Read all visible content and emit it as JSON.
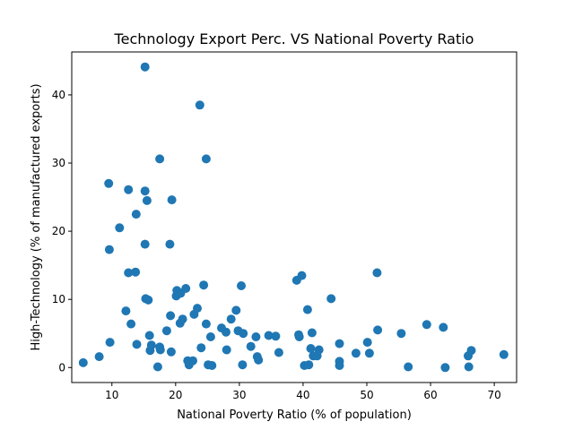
{
  "chart_data": {
    "type": "scatter",
    "title": "Technology Export Perc. VS National Poverty Ratio",
    "xlabel": "National Poverty Ratio (% of population)",
    "ylabel": "High-Technology (% of manufactured exports)",
    "xlim": [
      3.7,
      73.5
    ],
    "ylim": [
      -2.2,
      46.3
    ],
    "xticks": [
      10,
      20,
      30,
      40,
      50,
      60,
      70
    ],
    "yticks": [
      0,
      10,
      20,
      30,
      40
    ],
    "grid": false,
    "marker_color": "#1f77b4",
    "points": [
      [
        5.5,
        0.7
      ],
      [
        8.0,
        1.6
      ],
      [
        9.5,
        27.0
      ],
      [
        9.6,
        17.3
      ],
      [
        9.7,
        3.7
      ],
      [
        11.2,
        20.5
      ],
      [
        12.2,
        8.3
      ],
      [
        12.6,
        26.1
      ],
      [
        12.6,
        13.9
      ],
      [
        13.0,
        6.4
      ],
      [
        13.7,
        14.0
      ],
      [
        13.8,
        22.5
      ],
      [
        13.9,
        3.4
      ],
      [
        15.2,
        44.1
      ],
      [
        15.2,
        25.9
      ],
      [
        15.2,
        18.1
      ],
      [
        15.3,
        10.1
      ],
      [
        15.5,
        24.5
      ],
      [
        15.7,
        9.9
      ],
      [
        15.9,
        4.7
      ],
      [
        16.0,
        2.5
      ],
      [
        16.2,
        3.3
      ],
      [
        17.2,
        0.1
      ],
      [
        17.5,
        30.6
      ],
      [
        17.5,
        3.0
      ],
      [
        17.6,
        2.6
      ],
      [
        18.6,
        5.4
      ],
      [
        19.1,
        18.1
      ],
      [
        19.2,
        7.6
      ],
      [
        19.3,
        2.3
      ],
      [
        19.4,
        24.6
      ],
      [
        20.1,
        10.5
      ],
      [
        20.2,
        11.3
      ],
      [
        20.7,
        6.5
      ],
      [
        20.8,
        10.9
      ],
      [
        21.1,
        7.1
      ],
      [
        21.6,
        11.6
      ],
      [
        21.9,
        1.0
      ],
      [
        22.1,
        0.4
      ],
      [
        22.7,
        1.0
      ],
      [
        22.9,
        7.8
      ],
      [
        23.4,
        8.7
      ],
      [
        23.8,
        38.5
      ],
      [
        24.0,
        2.9
      ],
      [
        24.4,
        12.1
      ],
      [
        24.8,
        30.6
      ],
      [
        24.8,
        6.4
      ],
      [
        25.1,
        0.4
      ],
      [
        25.5,
        4.5
      ],
      [
        25.7,
        0.3
      ],
      [
        27.2,
        5.8
      ],
      [
        27.9,
        5.2
      ],
      [
        28.0,
        2.6
      ],
      [
        28.7,
        7.1
      ],
      [
        29.5,
        8.4
      ],
      [
        29.8,
        5.4
      ],
      [
        30.3,
        12.0
      ],
      [
        30.5,
        0.4
      ],
      [
        30.6,
        5.0
      ],
      [
        31.8,
        3.1
      ],
      [
        32.6,
        4.5
      ],
      [
        32.8,
        1.6
      ],
      [
        33.0,
        1.1
      ],
      [
        34.6,
        4.7
      ],
      [
        35.7,
        4.6
      ],
      [
        36.2,
        2.2
      ],
      [
        39.0,
        12.8
      ],
      [
        39.3,
        4.8
      ],
      [
        39.4,
        4.5
      ],
      [
        39.8,
        13.5
      ],
      [
        40.2,
        0.3
      ],
      [
        40.7,
        8.5
      ],
      [
        40.9,
        0.4
      ],
      [
        41.2,
        2.8
      ],
      [
        41.4,
        5.1
      ],
      [
        41.6,
        1.7
      ],
      [
        42.2,
        1.7
      ],
      [
        42.5,
        2.6
      ],
      [
        44.4,
        10.1
      ],
      [
        45.7,
        3.5
      ],
      [
        45.7,
        0.9
      ],
      [
        45.7,
        0.3
      ],
      [
        48.3,
        2.1
      ],
      [
        50.1,
        3.7
      ],
      [
        50.4,
        2.1
      ],
      [
        51.6,
        13.9
      ],
      [
        51.7,
        5.5
      ],
      [
        55.4,
        5.0
      ],
      [
        56.5,
        0.1
      ],
      [
        59.4,
        6.3
      ],
      [
        62.0,
        5.9
      ],
      [
        62.3,
        0.0
      ],
      [
        65.9,
        1.7
      ],
      [
        66.0,
        0.1
      ],
      [
        66.4,
        2.5
      ],
      [
        71.5,
        1.9
      ]
    ]
  }
}
